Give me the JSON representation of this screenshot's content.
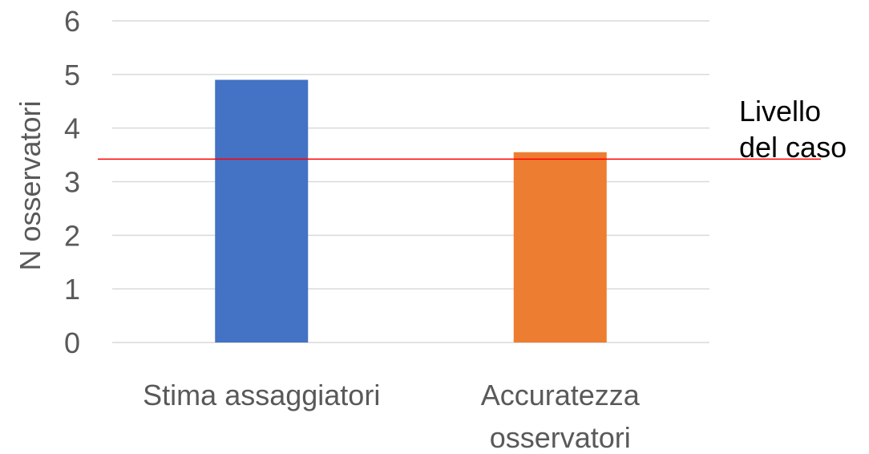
{
  "chart_data": {
    "type": "bar",
    "categories": [
      [
        "Stima assaggiatori"
      ],
      [
        "Accuratezza",
        "osservatori"
      ]
    ],
    "values": [
      4.9,
      3.55
    ],
    "colors": [
      "#4472C4",
      "#ED7D31"
    ],
    "ylabel": "N osservatori",
    "ylim": [
      0,
      6
    ],
    "yticks": [
      0,
      1,
      2,
      3,
      4,
      5,
      6
    ],
    "grid": true,
    "reference_line": {
      "value": 3.42,
      "color": "#FF0000",
      "label": [
        "Livello",
        "del caso"
      ]
    }
  }
}
